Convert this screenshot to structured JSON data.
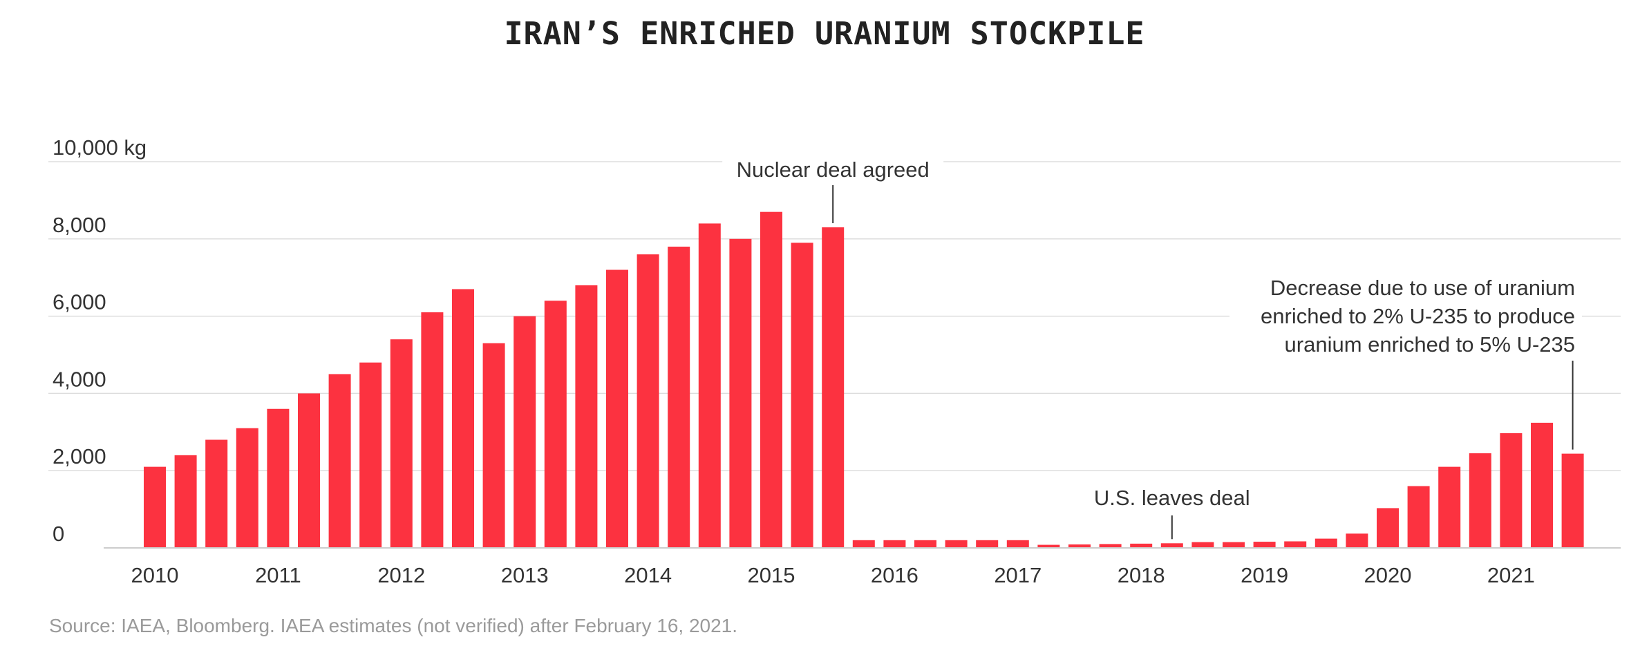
{
  "chart_data": {
    "type": "bar",
    "title": "IRAN’S ENRICHED URANIUM STOCKPILE",
    "ylabel": "",
    "xlabel": "",
    "ylim": [
      0,
      10000
    ],
    "y_ticks": [
      {
        "value": 0,
        "label": "0"
      },
      {
        "value": 2000,
        "label": "2,000"
      },
      {
        "value": 4000,
        "label": "4,000"
      },
      {
        "value": 6000,
        "label": "6,000"
      },
      {
        "value": 8000,
        "label": "8,000"
      },
      {
        "value": 10000,
        "label": "10,000 kg"
      }
    ],
    "x_ticks": [
      {
        "bar_index": 0,
        "label": "2010"
      },
      {
        "bar_index": 4,
        "label": "2011"
      },
      {
        "bar_index": 8,
        "label": "2012"
      },
      {
        "bar_index": 12,
        "label": "2013"
      },
      {
        "bar_index": 16,
        "label": "2014"
      },
      {
        "bar_index": 20,
        "label": "2015"
      },
      {
        "bar_index": 24,
        "label": "2016"
      },
      {
        "bar_index": 28,
        "label": "2017"
      },
      {
        "bar_index": 32,
        "label": "2018"
      },
      {
        "bar_index": 36,
        "label": "2019"
      },
      {
        "bar_index": 40,
        "label": "2020"
      },
      {
        "bar_index": 44,
        "label": "2021"
      }
    ],
    "values": [
      2100,
      2400,
      2800,
      3100,
      3600,
      4000,
      4500,
      4800,
      5400,
      6100,
      6700,
      5300,
      6000,
      6400,
      6800,
      7200,
      7600,
      7800,
      8400,
      8000,
      8700,
      7900,
      8300,
      200,
      200,
      200,
      200,
      200,
      200,
      80,
      90,
      100,
      110,
      120,
      150,
      150,
      160,
      170,
      240,
      370,
      1030,
      1600,
      2100,
      2450,
      2970,
      3240,
      2440
    ],
    "annotations": [
      {
        "bar_index": 22,
        "text": [
          "Nuclear deal agreed"
        ]
      },
      {
        "bar_index": 33,
        "text": [
          "U.S. leaves deal"
        ]
      },
      {
        "bar_index": 46,
        "text": [
          "Decrease due to use of uranium",
          "enriched to 2% U-235 to produce",
          "uranium enriched to 5% U-235"
        ]
      }
    ],
    "grid": true,
    "colors": {
      "bar": "#fc3240",
      "grid": "#dddddd",
      "axis": "#cccccc",
      "text": "#333333",
      "leader": "#333333"
    }
  },
  "source": "Source: IAEA, Bloomberg. IAEA estimates (not verified) after February 16, 2021."
}
